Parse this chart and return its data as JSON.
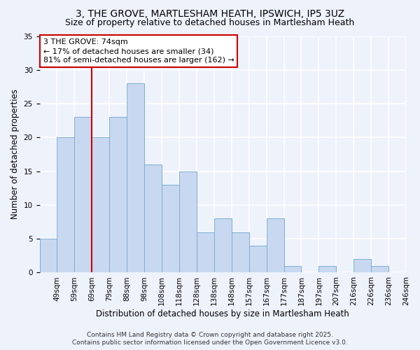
{
  "title_line1": "3, THE GROVE, MARTLESHAM HEATH, IPSWICH, IP5 3UZ",
  "title_line2": "Size of property relative to detached houses in Martlesham Heath",
  "xlabel": "Distribution of detached houses by size in Martlesham Heath",
  "ylabel": "Number of detached properties",
  "bar_labels": [
    "49sqm",
    "59sqm",
    "69sqm",
    "79sqm",
    "88sqm",
    "98sqm",
    "108sqm",
    "118sqm",
    "128sqm",
    "138sqm",
    "148sqm",
    "157sqm",
    "167sqm",
    "177sqm",
    "187sqm",
    "197sqm",
    "207sqm",
    "216sqm",
    "226sqm",
    "236sqm",
    "246sqm"
  ],
  "bar_values": [
    5,
    20,
    23,
    20,
    23,
    28,
    16,
    13,
    15,
    6,
    8,
    6,
    4,
    8,
    1,
    0,
    1,
    0,
    2,
    1,
    0
  ],
  "bar_color": "#c8d8f0",
  "bar_edge_color": "#7bafd4",
  "vline_color": "#cc0000",
  "vline_bar_index": 3,
  "annotation_title": "3 THE GROVE: 74sqm",
  "annotation_line1": "← 17% of detached houses are smaller (34)",
  "annotation_line2": "81% of semi-detached houses are larger (162) →",
  "annotation_box_color": "#ffffff",
  "annotation_box_edge": "#cc0000",
  "ylim": [
    0,
    35
  ],
  "yticks": [
    0,
    5,
    10,
    15,
    20,
    25,
    30,
    35
  ],
  "footer_line1": "Contains HM Land Registry data © Crown copyright and database right 2025.",
  "footer_line2": "Contains public sector information licensed under the Open Government Licence v3.0.",
  "background_color": "#eef2fb",
  "grid_color": "#ffffff",
  "title_fontsize": 10,
  "subtitle_fontsize": 9,
  "axis_label_fontsize": 8.5,
  "tick_fontsize": 7.5,
  "annotation_fontsize": 8,
  "footer_fontsize": 6.5
}
